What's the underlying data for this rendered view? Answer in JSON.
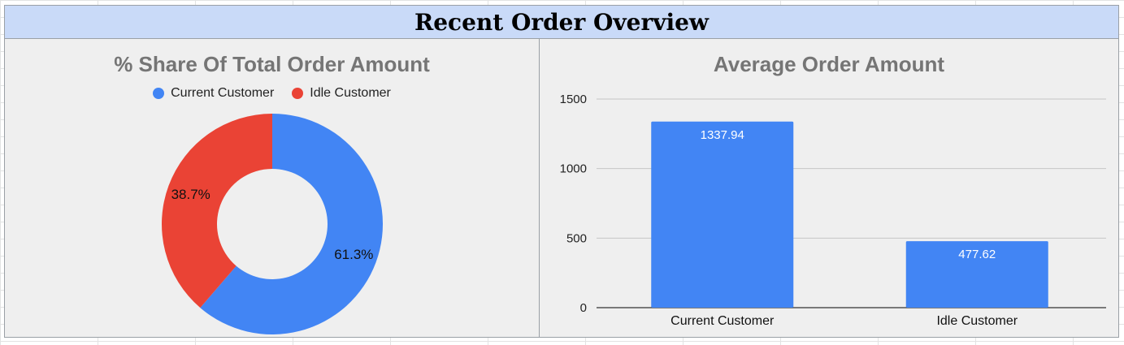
{
  "dashboard": {
    "title": "Recent Order Overview"
  },
  "colors": {
    "current": "#4285f4",
    "idle": "#ea4335",
    "title_bg": "#c9daf8",
    "panel_bg": "#efefef"
  },
  "chart_data": [
    {
      "type": "pie",
      "title": "% Share Of Total Order Amount",
      "donut": true,
      "legend_position": "top",
      "legend": [
        "Current Customer",
        "Idle Customer"
      ],
      "slices": [
        {
          "name": "Current Customer",
          "value": 61.3,
          "label": "61.3%",
          "color": "#4285f4"
        },
        {
          "name": "Idle Customer",
          "value": 38.7,
          "label": "38.7%",
          "color": "#ea4335"
        }
      ]
    },
    {
      "type": "bar",
      "title": "Average Order Amount",
      "categories": [
        "Current Customer",
        "Idle Customer"
      ],
      "values": [
        1337.94,
        477.62
      ],
      "value_labels": [
        "1337.94",
        "477.62"
      ],
      "ylim": [
        0,
        1500
      ],
      "yticks": [
        0,
        500,
        1000,
        1500
      ],
      "ytick_labels": [
        "0",
        "500",
        "1000",
        "1500"
      ],
      "grid": true,
      "color": "#4285f4"
    }
  ]
}
